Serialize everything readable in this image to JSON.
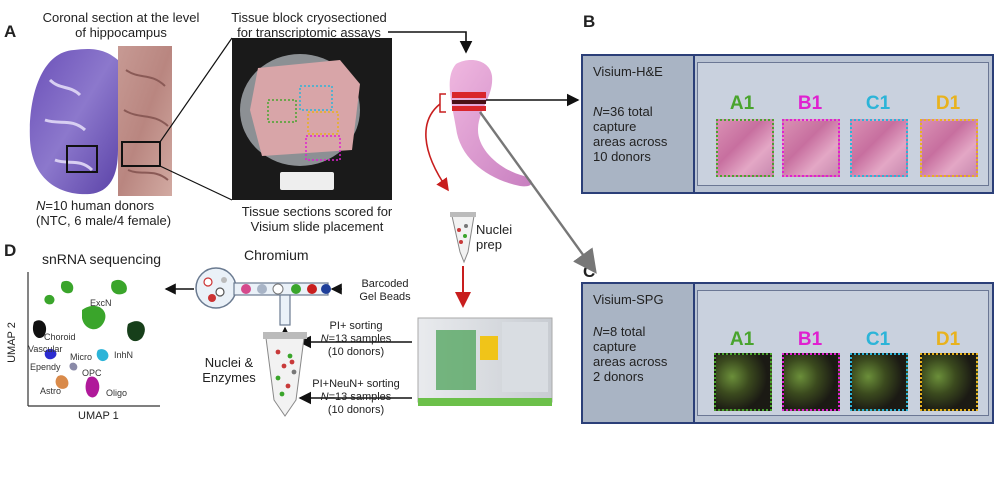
{
  "panels": {
    "A": "A",
    "B": "B",
    "C": "C",
    "D": "D"
  },
  "panelA": {
    "coronal_title_l1": "Coronal section at the level",
    "coronal_title_l2": "of hippocampus",
    "tissue_block_l1": "Tissue block cryosectioned",
    "tissue_block_l2": "for transcriptomic assays",
    "donors_prefix": "N",
    "donors_l1": "=10 human donors",
    "donors_l2": "(NTC, 6 male/4 female)",
    "scored_l1": "Tissue sections scored for",
    "scored_l2": "Visium slide placement",
    "nuclei_prep_l1": "Nuclei",
    "nuclei_prep_l2": "prep"
  },
  "panelB": {
    "slide_name": "Visium-H&E",
    "desc_prefix": "N",
    "desc_l1": "=36 total",
    "desc_l2": "capture",
    "desc_l3": "areas across",
    "desc_l4": "10 donors",
    "captures": [
      {
        "label": "A1",
        "color": "#49a42d"
      },
      {
        "label": "B1",
        "color": "#e020d0"
      },
      {
        "label": "C1",
        "color": "#2cb4d8"
      },
      {
        "label": "D1",
        "color": "#e8b21e"
      }
    ]
  },
  "panelC": {
    "slide_name": "Visium-SPG",
    "desc_prefix": "N",
    "desc_l1": "=8 total",
    "desc_l2": "capture",
    "desc_l3": "areas across",
    "desc_l4": "2 donors",
    "captures": [
      {
        "label": "A1",
        "color": "#49a42d"
      },
      {
        "label": "B1",
        "color": "#e020d0"
      },
      {
        "label": "C1",
        "color": "#2cb4d8"
      },
      {
        "label": "D1",
        "color": "#e8b21e"
      }
    ]
  },
  "panelD": {
    "title": "snRNA sequencing",
    "chromium": "Chromium",
    "barcoded_l1": "Barcoded",
    "barcoded_l2": "Gel Beads",
    "nuclei_enz_l1": "Nuclei &",
    "nuclei_enz_l2": "Enzymes",
    "pi_sorting": "PI+ sorting",
    "pi_samples_prefix": "N",
    "pi_samples_l1": "=13 samples",
    "pi_samples_l2": "(10 donors)",
    "neun_sorting": "PI+NeuN+ sorting",
    "neun_samples_prefix": "N",
    "neun_samples_l1": "=13 samples",
    "neun_samples_l2": "(10 donors)",
    "umap_x": "UMAP 1",
    "umap_y": "UMAP 2",
    "clusters": [
      {
        "label": "ExcN",
        "color": "#3aa52b"
      },
      {
        "label": "Choroid",
        "color": "#111111"
      },
      {
        "label": "Vascular",
        "color": "#2b2bd0"
      },
      {
        "label": "Micro",
        "color": "#555555"
      },
      {
        "label": "InhN",
        "color": "#2cb4d8"
      },
      {
        "label": "Ependy",
        "color": "#888888"
      },
      {
        "label": "OPC",
        "color": "#8a8aa8"
      },
      {
        "label": "Astro",
        "color": "#d98a4a"
      },
      {
        "label": "Oligo",
        "color": "#b0199a"
      }
    ]
  },
  "colors": {
    "arrow_black": "#111111",
    "arrow_red": "#c81e1e",
    "arrow_grey": "#777777",
    "slide_border": "#2b3f78"
  }
}
